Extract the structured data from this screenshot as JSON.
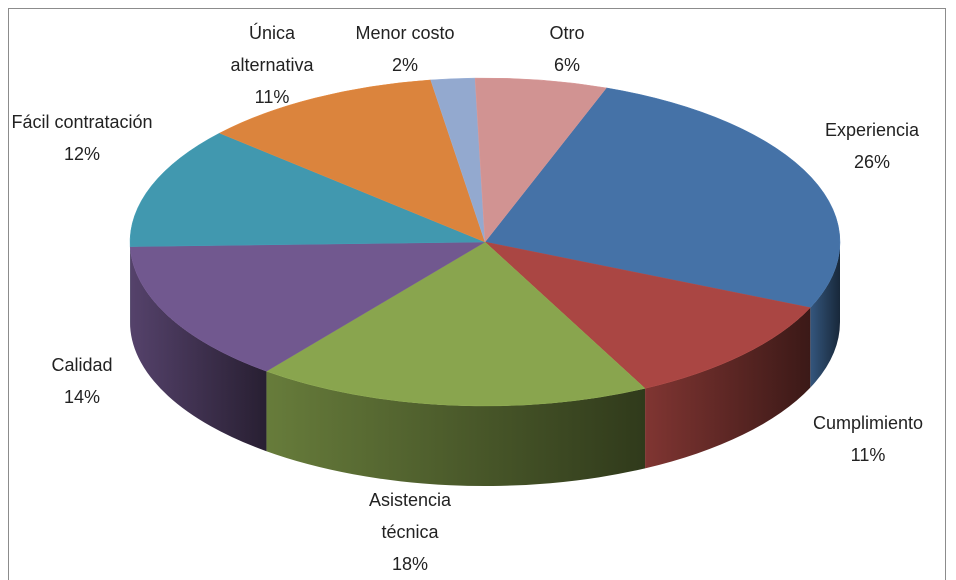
{
  "chart_data": {
    "type": "pie",
    "categories": [
      "Experiencia",
      "Cumplimiento",
      "Asistencia técnica",
      "Calidad",
      "Fácil contratación",
      "Única alternativa",
      "Menor costo",
      "Otro"
    ],
    "values": [
      26,
      11,
      18,
      14,
      12,
      11,
      2,
      6
    ],
    "value_labels": [
      "26%",
      "11%",
      "18%",
      "14%",
      "12%",
      "11%",
      "2%",
      "6%"
    ],
    "colors": [
      "#4572a7",
      "#aa4643",
      "#89a54e",
      "#71588f",
      "#4198af",
      "#db843d",
      "#93a9cf",
      "#d19392"
    ]
  }
}
